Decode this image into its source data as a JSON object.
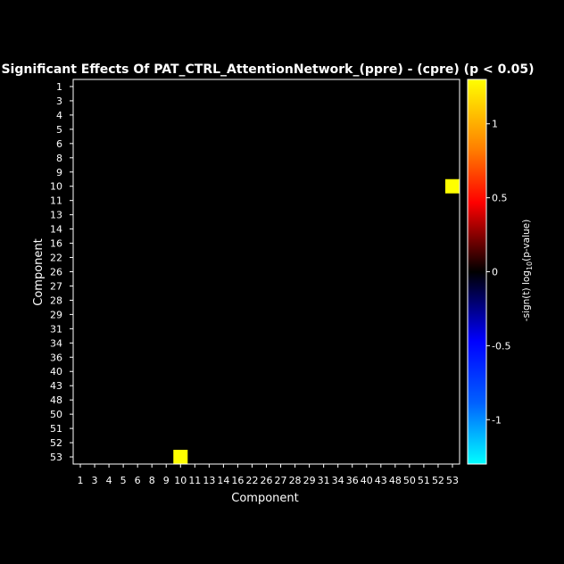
{
  "chart_data": {
    "type": "heatmap",
    "title": "Significant Effects Of PAT_CTRL_AttentionNetwork_(ppre) - (cpre) (p < 0.05)",
    "xlabel": "Component",
    "ylabel": "Component",
    "categories": [
      "1",
      "3",
      "4",
      "5",
      "6",
      "8",
      "9",
      "10",
      "11",
      "13",
      "14",
      "16",
      "22",
      "26",
      "27",
      "28",
      "29",
      "31",
      "34",
      "36",
      "40",
      "43",
      "48",
      "50",
      "51",
      "52",
      "53"
    ],
    "cells": [
      {
        "x": "53",
        "y": "10",
        "value": 1.3
      },
      {
        "x": "10",
        "y": "53",
        "value": 1.3
      }
    ],
    "background_value": 0,
    "colorbar": {
      "label": "-sign(t) log",
      "label_sub": "10",
      "label_tail": "(p-value)",
      "range": [
        -1.3,
        1.3
      ],
      "ticks": [
        1,
        0.5,
        0,
        -0.5,
        -1
      ],
      "tick_labels": [
        "1",
        "0.5",
        "0",
        "-0.5",
        "-1"
      ],
      "colormap": "cyan-blue-black-red-yellow"
    },
    "colors": {
      "background": "#000000",
      "cell_high": "#ffff00",
      "text": "#ffffff"
    }
  }
}
